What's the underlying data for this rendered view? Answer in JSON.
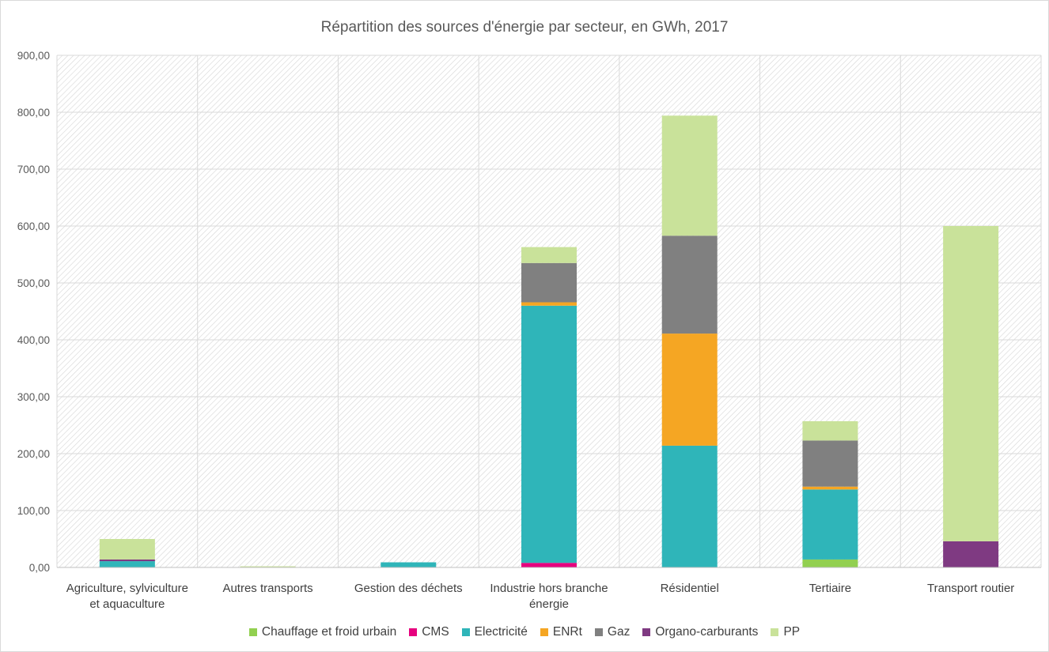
{
  "chart_data": {
    "type": "bar",
    "stacked": true,
    "title": "Répartition des sources d'énergie par secteur, en GWh, 2017",
    "xlabel": "",
    "ylabel": "",
    "ylim": [
      0,
      900
    ],
    "yticks": [
      0,
      100,
      200,
      300,
      400,
      500,
      600,
      700,
      800,
      900
    ],
    "ytick_labels": [
      "0,00",
      "100,00",
      "200,00",
      "300,00",
      "400,00",
      "500,00",
      "600,00",
      "700,00",
      "800,00",
      "900,00"
    ],
    "grid": true,
    "legend_position": "bottom",
    "categories": [
      [
        "Agriculture, sylviculture",
        "et aquaculture"
      ],
      [
        "Autres transports"
      ],
      [
        "Gestion des déchets"
      ],
      [
        "Industrie hors branche",
        "énergie"
      ],
      [
        "Résidentiel"
      ],
      [
        "Tertiaire"
      ],
      [
        "Transport routier"
      ]
    ],
    "series": [
      {
        "name": "Chauffage et froid urbain",
        "color": "#92d050",
        "values": [
          0,
          0,
          0,
          0,
          0,
          14,
          0
        ]
      },
      {
        "name": "CMS",
        "color": "#e6007e",
        "values": [
          0,
          0,
          0,
          8,
          0,
          0,
          0
        ]
      },
      {
        "name": "Electricité",
        "color": "#2fb5b9",
        "values": [
          11,
          0,
          9,
          452,
          214,
          123,
          0
        ]
      },
      {
        "name": "ENRt",
        "color": "#f5a623",
        "values": [
          0,
          0,
          0,
          6,
          197,
          5,
          0
        ]
      },
      {
        "name": "Gaz",
        "color": "#808080",
        "values": [
          0,
          0,
          0,
          69,
          172,
          81,
          0
        ]
      },
      {
        "name": "Organo-carburants",
        "color": "#7f3a82",
        "values": [
          3,
          0,
          0,
          0,
          0,
          0,
          46
        ]
      },
      {
        "name": "PP",
        "color": "#c9e29a",
        "values": [
          36,
          2,
          0,
          28,
          211,
          34,
          554
        ]
      }
    ]
  }
}
